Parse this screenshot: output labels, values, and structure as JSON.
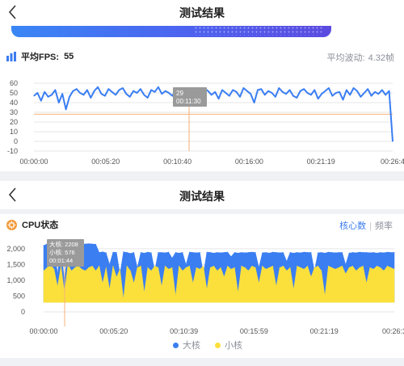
{
  "screen1": {
    "title": "测试结果",
    "fps_label": "平均FPS:",
    "fps_value": "55",
    "fluct_label": "平均波动:",
    "fluct_value": "4.32帧"
  },
  "screen2": {
    "title": "测试结果",
    "cpu_label": "CPU状态",
    "tab_cores": "核心数",
    "tab_sep": "|",
    "tab_freq": "频率",
    "legend_big": "大核",
    "legend_small": "小核"
  },
  "colors": {
    "blue": "#3a7ef2",
    "yellow": "#fbe03c",
    "accent": "#3b7cf0",
    "marker": "#f4b27a"
  },
  "chart_data": [
    {
      "type": "line",
      "ylim": [
        -10,
        60
      ],
      "yticks": [
        "60",
        "50",
        "40",
        "30",
        "20",
        "10",
        "0",
        "-10"
      ],
      "xticks": [
        "00:00:00",
        "00:05:20",
        "00:10:40",
        "00:16:00",
        "00:21:19",
        "00:26:4"
      ],
      "series": [
        {
          "color": "#3a7ef2",
          "values": [
            47,
            50,
            42,
            51,
            46,
            48,
            53,
            40,
            49,
            33,
            46,
            52,
            54,
            50,
            48,
            53,
            45,
            52,
            56,
            49,
            47,
            54,
            51,
            48,
            53,
            55,
            49,
            46,
            52,
            50,
            54,
            48,
            45,
            53,
            51,
            56,
            49,
            52,
            50,
            47,
            54,
            52,
            49,
            45,
            51,
            53,
            38,
            50,
            55,
            52,
            48,
            51,
            44,
            53,
            50,
            47,
            53,
            51,
            46,
            55,
            52,
            49,
            40,
            53,
            54,
            48,
            52,
            50,
            46,
            55,
            51,
            49,
            53,
            47,
            45,
            52,
            54,
            50,
            48,
            53,
            44,
            49,
            52,
            55,
            47,
            50,
            51,
            43,
            53,
            48,
            55,
            52,
            46,
            50,
            54,
            47,
            51,
            49,
            53,
            48,
            52,
            0
          ]
        }
      ],
      "tooltip": {
        "value": "29",
        "time": "00:11:30"
      },
      "reference_line": 28
    },
    {
      "type": "area",
      "ylim": [
        0,
        2200
      ],
      "yticks": [
        "2,000",
        "1,500",
        "1,000",
        "500",
        "0"
      ],
      "xticks": [
        "00:00:00",
        "00:05:20",
        "00:10:39",
        "00:15:59",
        "00:21:19",
        "00:26:3"
      ],
      "series": [
        {
          "name": "大核",
          "color": "#3a7ef2",
          "values": [
            2100,
            2150,
            2140,
            2160,
            1200,
            2150,
            900,
            2150,
            2140,
            2130,
            2150,
            2140,
            2150,
            2160,
            2150,
            2140,
            1880,
            1900,
            1870,
            1500,
            1890,
            1880,
            1200,
            1900,
            1880,
            1850,
            1880,
            1400,
            1880,
            1860,
            1890,
            1870,
            1300,
            1880,
            1880,
            1870,
            1890,
            1700,
            1880,
            1860,
            1880,
            1500,
            1890,
            1880,
            1870,
            1880,
            1200,
            1890,
            1880,
            1860,
            1880,
            1870,
            1880,
            1890,
            1750,
            1880,
            1860,
            1880,
            1870,
            1880,
            1890,
            1880,
            1400,
            1870,
            1880,
            1860,
            1890,
            1880,
            1870,
            1880,
            1600,
            1880,
            1860,
            1880,
            1870,
            1890,
            1880,
            1880,
            1300,
            1870,
            1880,
            1860,
            1890,
            1880,
            1870,
            1880,
            1880,
            1500,
            1860,
            1880,
            1870,
            1890,
            1880,
            1880,
            1870,
            1880,
            1860,
            1880,
            1870,
            1890,
            1880,
            1880
          ]
        },
        {
          "name": "小核",
          "color": "#fbe03c",
          "values": [
            1300,
            1400,
            1500,
            1350,
            800,
            1450,
            600,
            1500,
            1300,
            1400,
            1450,
            1350,
            1300,
            1400,
            1450,
            1300,
            1450,
            900,
            1400,
            700,
            1450,
            1100,
            1350,
            400,
            1450,
            1300,
            900,
            1400,
            1450,
            600,
            1400,
            1300,
            1450,
            1400,
            800,
            1450,
            1350,
            1400,
            500,
            1450,
            1300,
            1400,
            1450,
            900,
            1400,
            1350,
            1450,
            700,
            1400,
            1450,
            1300,
            1400,
            1100,
            1450,
            1350,
            1400,
            600,
            1450,
            1400,
            1300,
            1450,
            1400,
            900,
            1450,
            1350,
            1400,
            1450,
            800,
            1400,
            1450,
            1300,
            1400,
            700,
            1450,
            1400,
            1350,
            1450,
            1100,
            1400,
            1450,
            1300,
            500,
            1450,
            1400,
            1350,
            1400,
            1450,
            1200,
            1400,
            1450,
            1300,
            1400,
            1450,
            900,
            1400,
            1350,
            1450,
            1400,
            1300,
            1450,
            1400,
            1350
          ]
        }
      ],
      "tooltip": {
        "big_label": "大核:",
        "big_value": "2208",
        "small_label": "小核:",
        "small_value": "576",
        "time": "00:01:44"
      }
    }
  ]
}
